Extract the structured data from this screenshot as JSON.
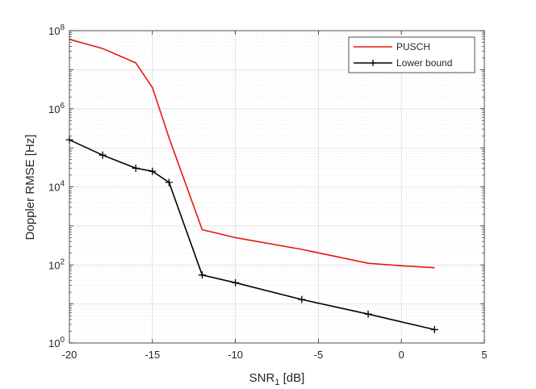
{
  "chart_data": {
    "type": "line",
    "xlabel_main": "SNR",
    "xlabel_sub": "1",
    "xlabel_unit": " [dB]",
    "ylabel": "Doppler RMSE [Hz]",
    "xlim": [
      -20,
      5
    ],
    "ylim": [
      1,
      100000000
    ],
    "yscale": "log",
    "grid": true,
    "minor_grid": true,
    "legend_placement": "top-right",
    "x_ticks": [
      -20,
      -15,
      -10,
      -5,
      0,
      5
    ],
    "x_tick_labels": [
      "-20",
      "-15",
      "-10",
      "-5",
      "0",
      "5"
    ],
    "y_tick_exponents": [
      0,
      2,
      4,
      6,
      8
    ],
    "y_tick_base": "10",
    "y_tick_exp_labels": [
      "0",
      "2",
      "4",
      "6",
      "8"
    ],
    "series": [
      {
        "name": "PUSCH",
        "color": "#e8180f",
        "marker": "none",
        "x": [
          -20,
          -18,
          -16,
          -15,
          -14,
          -12,
          -10,
          -6,
          -2,
          0,
          2
        ],
        "y": [
          60000000,
          35000000,
          15000000,
          3500000,
          180000,
          800,
          500,
          250,
          110,
          95,
          85
        ]
      },
      {
        "name": "Lower bound",
        "color": "#000000",
        "marker": "plus",
        "x": [
          -20,
          -18,
          -16,
          -15,
          -14,
          -12,
          -10,
          -6,
          -2,
          2
        ],
        "y": [
          160000,
          65000,
          30000,
          25000,
          13000,
          55,
          35,
          13,
          5.5,
          2.2
        ]
      }
    ]
  }
}
